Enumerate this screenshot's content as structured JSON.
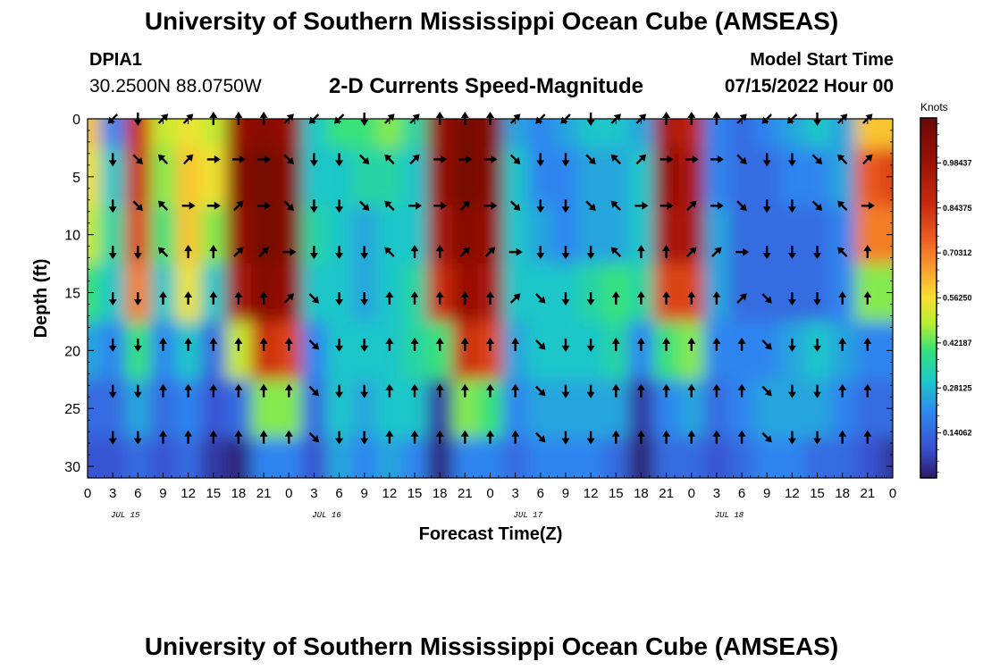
{
  "header": {
    "title": "University of Southern Mississippi Ocean Cube (AMSEAS)",
    "station_id": "DPIA1",
    "coordinates": "30.2500N  88.0750W",
    "subtitle": "2-D Currents Speed-Magnitude",
    "model_start_label": "Model Start Time",
    "model_start_value": "07/15/2022 Hour 00"
  },
  "footer": {
    "title": "University of Southern Mississippi Ocean Cube (AMSEAS)"
  },
  "chart_data": {
    "type": "heatmap",
    "title": "2-D Currents Speed-Magnitude",
    "xlabel": "Forecast Time(Z)",
    "ylabel": "Depth (ft)",
    "x_range_hours": [
      0,
      96
    ],
    "ylim": [
      0,
      31
    ],
    "x_tick_labels": [
      "0",
      "3",
      "6",
      "9",
      "12",
      "15",
      "18",
      "21",
      "0",
      "3",
      "6",
      "9",
      "12",
      "15",
      "18",
      "21",
      "0",
      "3",
      "6",
      "9",
      "12",
      "15",
      "18",
      "21",
      "0",
      "3",
      "6",
      "9",
      "12",
      "15",
      "18",
      "21",
      "0"
    ],
    "y_ticks": [
      0,
      5,
      10,
      15,
      20,
      25,
      30
    ],
    "date_labels": [
      {
        "label": "JUL 15",
        "hour": 4.5
      },
      {
        "label": "JUL 16",
        "hour": 28.5
      },
      {
        "label": "JUL 17",
        "hour": 52.5
      },
      {
        "label": "JUL 18",
        "hour": 76.5
      }
    ],
    "colorbar": {
      "unit": "Knots",
      "ticks": [
        "0.98437",
        "0.84375",
        "0.70312",
        "0.56250",
        "0.42187",
        "0.28125",
        "0.14062"
      ],
      "min": 0.0,
      "max": 1.125
    },
    "arrow_depths_ft": [
      0,
      3.5,
      7.5,
      11.5,
      15.5,
      19.5,
      23.5,
      27.5
    ],
    "speed_grid": {
      "hours": [
        0,
        3,
        6,
        9,
        12,
        15,
        18,
        21,
        24,
        27,
        30,
        33,
        36,
        39,
        42,
        45,
        48,
        51,
        54,
        57,
        60,
        63,
        66,
        69,
        72,
        75,
        78,
        81,
        84,
        87,
        90,
        93,
        96
      ],
      "depths_ft": [
        0,
        5,
        10,
        15,
        20,
        25,
        30
      ],
      "rows": [
        [
          0.6,
          0.2,
          0.85,
          0.5,
          0.55,
          0.5,
          1.0,
          1.05,
          1.0,
          0.3,
          0.4,
          0.4,
          0.45,
          0.35,
          1.0,
          1.1,
          1.05,
          0.25,
          0.2,
          0.25,
          0.3,
          0.3,
          0.25,
          0.95,
          0.9,
          0.2,
          0.15,
          0.2,
          0.25,
          0.3,
          0.25,
          0.6,
          0.6
        ],
        [
          0.55,
          0.3,
          0.85,
          0.45,
          0.6,
          0.55,
          1.05,
          1.1,
          1.05,
          0.3,
          0.3,
          0.35,
          0.35,
          0.3,
          1.0,
          1.1,
          1.05,
          0.3,
          0.2,
          0.2,
          0.25,
          0.25,
          0.3,
          1.0,
          0.95,
          0.2,
          0.15,
          0.15,
          0.2,
          0.2,
          0.25,
          0.75,
          0.8
        ],
        [
          0.5,
          0.35,
          0.8,
          0.4,
          0.6,
          0.45,
          1.0,
          1.1,
          1.05,
          0.35,
          0.3,
          0.25,
          0.3,
          0.3,
          0.95,
          1.05,
          1.0,
          0.3,
          0.25,
          0.2,
          0.25,
          0.25,
          0.3,
          0.95,
          0.95,
          0.25,
          0.15,
          0.15,
          0.15,
          0.15,
          0.2,
          0.7,
          0.7
        ],
        [
          0.4,
          0.3,
          0.7,
          0.3,
          0.55,
          0.3,
          0.95,
          1.05,
          1.0,
          0.3,
          0.3,
          0.25,
          0.3,
          0.35,
          0.85,
          1.0,
          0.95,
          0.3,
          0.3,
          0.3,
          0.35,
          0.4,
          0.35,
          0.8,
          0.8,
          0.25,
          0.15,
          0.15,
          0.15,
          0.15,
          0.2,
          0.45,
          0.45
        ],
        [
          0.25,
          0.2,
          0.4,
          0.2,
          0.3,
          0.15,
          0.5,
          0.85,
          0.8,
          0.2,
          0.3,
          0.3,
          0.3,
          0.35,
          0.4,
          0.85,
          0.8,
          0.25,
          0.3,
          0.3,
          0.3,
          0.35,
          0.2,
          0.4,
          0.45,
          0.2,
          0.2,
          0.2,
          0.25,
          0.3,
          0.25,
          0.2,
          0.2
        ],
        [
          0.15,
          0.15,
          0.25,
          0.15,
          0.2,
          0.1,
          0.15,
          0.45,
          0.45,
          0.15,
          0.3,
          0.25,
          0.3,
          0.3,
          0.05,
          0.45,
          0.4,
          0.2,
          0.25,
          0.25,
          0.25,
          0.25,
          0.05,
          0.2,
          0.25,
          0.15,
          0.2,
          0.25,
          0.25,
          0.25,
          0.2,
          0.15,
          0.15
        ],
        [
          0.1,
          0.1,
          0.15,
          0.1,
          0.15,
          0.05,
          0.02,
          0.2,
          0.2,
          0.1,
          0.25,
          0.2,
          0.25,
          0.2,
          0.02,
          0.2,
          0.2,
          0.15,
          0.2,
          0.2,
          0.2,
          0.15,
          0.01,
          0.15,
          0.15,
          0.1,
          0.15,
          0.2,
          0.2,
          0.15,
          0.15,
          0.1,
          0.05
        ]
      ]
    }
  }
}
